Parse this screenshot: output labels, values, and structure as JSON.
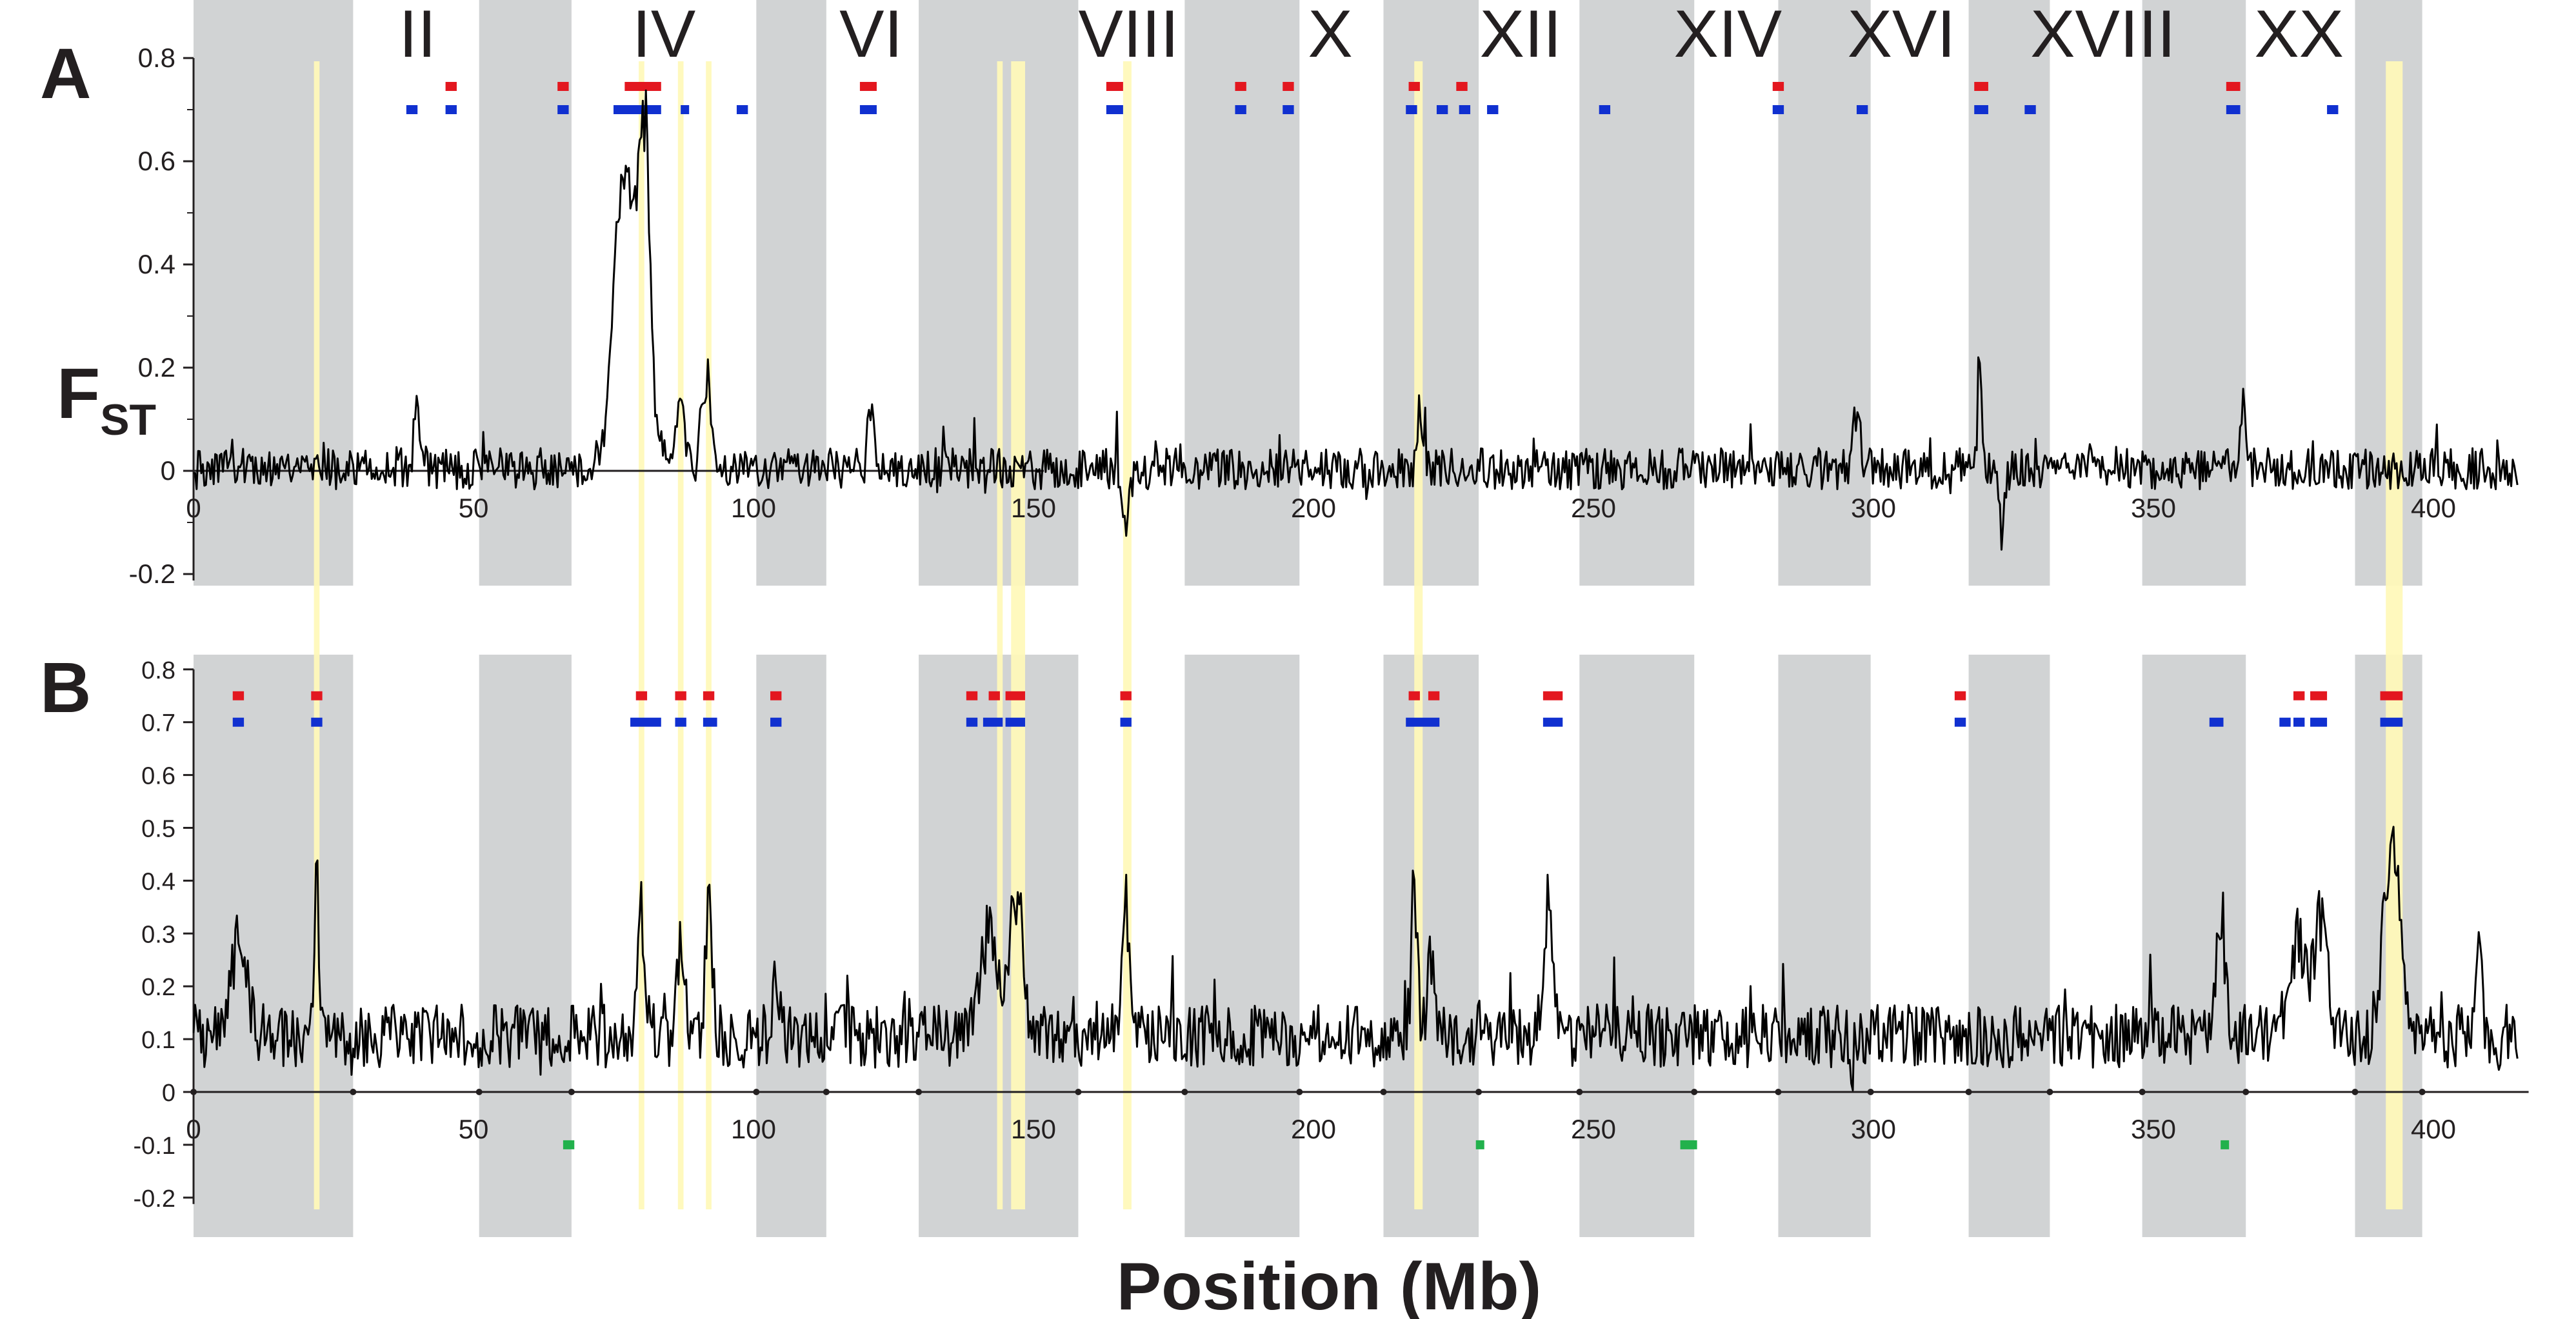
{
  "figure": {
    "xlabel": "Position (Mb)"
  },
  "chromosomes": {
    "labels": [
      "II",
      "IV",
      "VI",
      "VIII",
      "X",
      "XII",
      "XIV",
      "XVI",
      "XVIII",
      "XX"
    ],
    "label_positions_mb": [
      40,
      84,
      121,
      167,
      203,
      237,
      274,
      305,
      341,
      376
    ],
    "gray_bands_mb": [
      [
        0,
        28.5
      ],
      [
        51,
        67.5
      ],
      [
        100.5,
        113
      ],
      [
        129.5,
        158
      ],
      [
        177,
        197.5
      ],
      [
        212.5,
        229.5
      ],
      [
        247.5,
        268
      ],
      [
        283,
        299.5
      ],
      [
        317,
        331.5
      ],
      [
        348,
        366.5
      ],
      [
        386,
        398
      ]
    ]
  },
  "yellow_bands_mb": [
    [
      21.5,
      22.5
    ],
    [
      79.5,
      80.5
    ],
    [
      86.5,
      87.5
    ],
    [
      91.5,
      92.5
    ],
    [
      143.5,
      144.5
    ],
    [
      146,
      148.5
    ],
    [
      166,
      167.5
    ],
    [
      218,
      219.5
    ],
    [
      391.5,
      394.5
    ]
  ],
  "chart_data": [
    {
      "type": "line",
      "panel": "A",
      "ylabel": "F",
      "ylabel_sub": "ST",
      "ylim": [
        -0.2,
        0.8
      ],
      "yticks": [
        -0.2,
        0,
        0.2,
        0.4,
        0.6,
        0.8
      ],
      "ytick_labels": [
        "-0.2",
        "0",
        "0.2",
        "0.4",
        "0.6",
        "0.8"
      ],
      "xlim": [
        0,
        415
      ],
      "xticks": [
        0,
        50,
        100,
        150,
        200,
        250,
        300,
        350,
        400
      ],
      "xtick_labels": [
        "0",
        "50",
        "100",
        "150",
        "200",
        "250",
        "300",
        "350",
        "400"
      ],
      "series_color": "#000000",
      "baseline": 0,
      "noise_amplitude": 0.04,
      "peaks": [
        {
          "x": 78,
          "y": 0.4,
          "w": 2.5
        },
        {
          "x": 80.5,
          "y": 0.53,
          "w": 1.0
        },
        {
          "x": 76.5,
          "y": 0.3,
          "w": 1.5
        },
        {
          "x": 91.5,
          "y": 0.22,
          "w": 0.8
        },
        {
          "x": 87,
          "y": 0.12,
          "w": 0.8
        },
        {
          "x": 40,
          "y": 0.14,
          "w": 0.6
        },
        {
          "x": 121,
          "y": 0.12,
          "w": 0.6
        },
        {
          "x": 166.5,
          "y": -0.11,
          "w": 0.6
        },
        {
          "x": 219,
          "y": 0.13,
          "w": 0.5
        },
        {
          "x": 297,
          "y": 0.14,
          "w": 0.6
        },
        {
          "x": 319,
          "y": 0.24,
          "w": 0.4
        },
        {
          "x": 323,
          "y": -0.15,
          "w": 0.4
        },
        {
          "x": 366,
          "y": 0.13,
          "w": 0.5
        }
      ],
      "markers": {
        "red": {
          "y": 0.745,
          "intervals_mb": [
            [
              45,
              47
            ],
            [
              65,
              67
            ],
            [
              77,
              83.5
            ],
            [
              119,
              122
            ],
            [
              163,
              166
            ],
            [
              186,
              188
            ],
            [
              194.5,
              196.5
            ],
            [
              217,
              219
            ],
            [
              225.5,
              227.5
            ],
            [
              282,
              284
            ],
            [
              318,
              320.5
            ],
            [
              363,
              365.5
            ]
          ]
        },
        "blue": {
          "y": 0.7,
          "intervals_mb": [
            [
              38,
              40
            ],
            [
              45,
              47
            ],
            [
              65,
              67
            ],
            [
              75,
              83.5
            ],
            [
              87,
              88.5
            ],
            [
              97,
              99
            ],
            [
              119,
              122
            ],
            [
              163,
              166
            ],
            [
              186,
              188
            ],
            [
              194.5,
              196.5
            ],
            [
              216.5,
              218.5
            ],
            [
              222,
              224
            ],
            [
              226,
              228
            ],
            [
              231,
              233
            ],
            [
              251,
              253
            ],
            [
              282,
              284
            ],
            [
              297,
              299
            ],
            [
              318,
              320.5
            ],
            [
              327,
              329
            ],
            [
              363,
              365.5
            ],
            [
              381,
              383
            ]
          ]
        }
      }
    },
    {
      "type": "line",
      "panel": "B",
      "ylabel": "",
      "ylim": [
        -0.2,
        0.8
      ],
      "yticks": [
        -0.2,
        -0.1,
        0,
        0.1,
        0.2,
        0.3,
        0.4,
        0.5,
        0.6,
        0.7,
        0.8
      ],
      "ytick_labels": [
        "-0.2",
        "-0.1",
        "0",
        "0.1",
        "0.2",
        "0.3",
        "0.4",
        "0.5",
        "0.6",
        "0.7",
        "0.8"
      ],
      "xlim": [
        0,
        415
      ],
      "xticks": [
        0,
        50,
        100,
        150,
        200,
        250,
        300,
        350,
        400
      ],
      "xtick_labels": [
        "0",
        "50",
        "100",
        "150",
        "200",
        "250",
        "300",
        "350",
        "400"
      ],
      "series_color": "#000000",
      "baseline": 0.1,
      "noise_amplitude": 0.06,
      "peaks": [
        {
          "x": 8,
          "y": 0.2,
          "w": 1.5
        },
        {
          "x": 22,
          "y": 0.33,
          "w": 0.4
        },
        {
          "x": 80,
          "y": 0.24,
          "w": 0.8
        },
        {
          "x": 87,
          "y": 0.2,
          "w": 0.7
        },
        {
          "x": 92,
          "y": 0.31,
          "w": 0.6
        },
        {
          "x": 104,
          "y": 0.14,
          "w": 0.6
        },
        {
          "x": 142,
          "y": 0.22,
          "w": 1.5
        },
        {
          "x": 147,
          "y": 0.28,
          "w": 1.2
        },
        {
          "x": 166.5,
          "y": 0.28,
          "w": 0.6
        },
        {
          "x": 218,
          "y": 0.36,
          "w": 0.5
        },
        {
          "x": 221,
          "y": 0.18,
          "w": 0.6
        },
        {
          "x": 242,
          "y": 0.28,
          "w": 0.9
        },
        {
          "x": 296,
          "y": -0.12,
          "w": 0.3
        },
        {
          "x": 362,
          "y": 0.22,
          "w": 0.8
        },
        {
          "x": 376,
          "y": 0.22,
          "w": 1.5
        },
        {
          "x": 380,
          "y": 0.25,
          "w": 1.2
        },
        {
          "x": 392.5,
          "y": 0.41,
          "w": 1.4
        },
        {
          "x": 408,
          "y": 0.17,
          "w": 0.6
        },
        {
          "x": 412,
          "y": -0.08,
          "w": 0.3
        }
      ],
      "markers": {
        "red": {
          "y": 0.75,
          "intervals_mb": [
            [
              7,
              9
            ],
            [
              21,
              23
            ],
            [
              79,
              81
            ],
            [
              86,
              88
            ],
            [
              91,
              93
            ],
            [
              103,
              105
            ],
            [
              138,
              140
            ],
            [
              142,
              144
            ],
            [
              145,
              148.5
            ],
            [
              165.5,
              167.5
            ],
            [
              217,
              219
            ],
            [
              220.5,
              222.5
            ],
            [
              241,
              244.5
            ],
            [
              314.5,
              316.5
            ],
            [
              375,
              377
            ],
            [
              378,
              381
            ],
            [
              390.5,
              394.5
            ]
          ]
        },
        "blue": {
          "y": 0.7,
          "intervals_mb": [
            [
              7,
              9
            ],
            [
              21,
              23
            ],
            [
              78,
              83.5
            ],
            [
              86,
              88
            ],
            [
              91,
              93.5
            ],
            [
              103,
              105
            ],
            [
              138,
              140
            ],
            [
              141,
              144.5
            ],
            [
              145,
              148.5
            ],
            [
              165.5,
              167.5
            ],
            [
              216.5,
              222.5
            ],
            [
              241,
              244.5
            ],
            [
              314.5,
              316.5
            ],
            [
              360,
              362.5
            ],
            [
              372.5,
              374.5
            ],
            [
              375,
              377
            ],
            [
              378,
              381
            ],
            [
              390.5,
              394.5
            ]
          ]
        },
        "green": {
          "y": -0.1,
          "intervals_mb": [
            [
              66,
              68
            ],
            [
              229,
              230.5
            ],
            [
              265.5,
              268.5
            ],
            [
              362,
              363.5
            ]
          ]
        }
      }
    }
  ]
}
